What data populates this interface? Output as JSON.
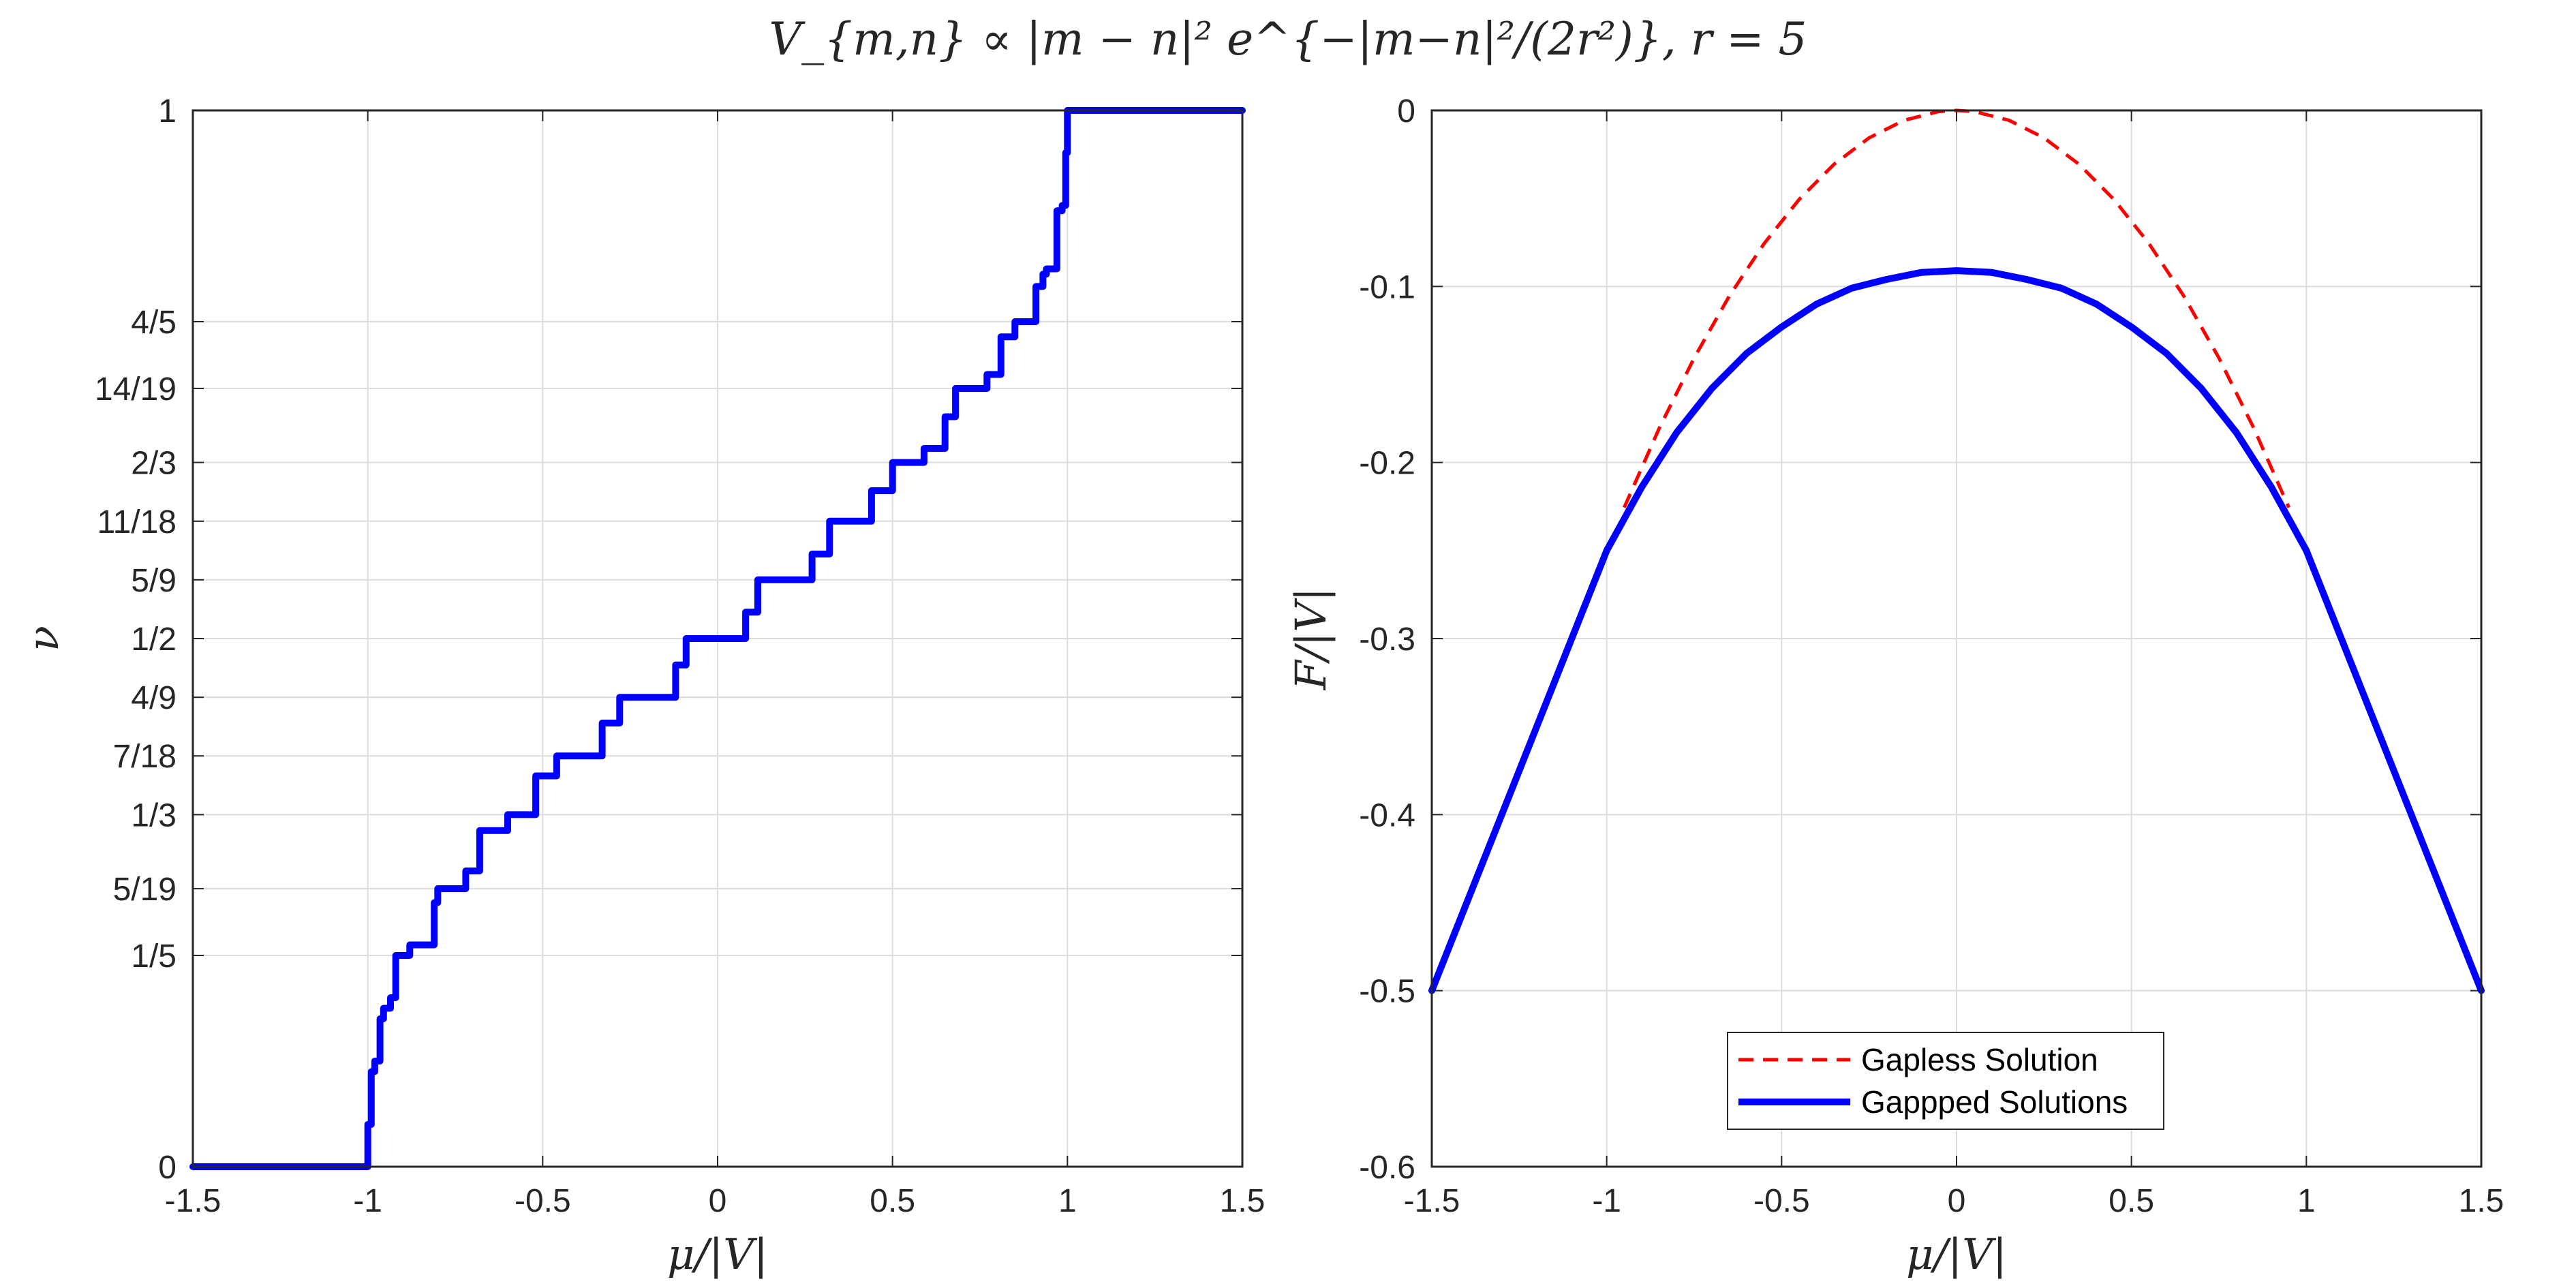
{
  "figure_title": "V_{m,n} ∝ |m − n|² e^{−|m−n|²/(2r²)},   r = 5",
  "chart_data": [
    {
      "type": "line",
      "xlabel": "μ/|V|",
      "ylabel": "ν",
      "xlim": [
        -1.5,
        1.5
      ],
      "ylim": [
        0,
        1
      ],
      "grid": true,
      "x_ticks": [
        -1.5,
        -1,
        -0.5,
        0,
        0.5,
        1,
        1.5
      ],
      "x_tick_labels": [
        "-1.5",
        "-1",
        "-0.5",
        "0",
        "0.5",
        "1",
        "1.5"
      ],
      "y_ticks": [
        0,
        0.2,
        0.2632,
        0.3333,
        0.3889,
        0.4444,
        0.5,
        0.5556,
        0.6111,
        0.6667,
        0.7368,
        0.8,
        1
      ],
      "y_tick_labels": [
        "0",
        "1/5",
        "5/19",
        "1/3",
        "7/18",
        "4/9",
        "1/2",
        "5/9",
        "11/18",
        "2/3",
        "14/19",
        "4/5",
        "1"
      ],
      "series": [
        {
          "color": "#0000ff",
          "style": "solid",
          "x": [
            -1.5,
            -1.0,
            -1.0,
            -0.99,
            -0.99,
            -0.98,
            -0.98,
            -0.965,
            -0.965,
            -0.955,
            -0.955,
            -0.935,
            -0.935,
            -0.92,
            -0.92,
            -0.88,
            -0.88,
            -0.81,
            -0.81,
            -0.8,
            -0.8,
            -0.72,
            -0.72,
            -0.68,
            -0.68,
            -0.6,
            -0.6,
            -0.52,
            -0.52,
            -0.46,
            -0.46,
            -0.33,
            -0.33,
            -0.28,
            -0.28,
            -0.12,
            -0.12,
            -0.09,
            -0.09,
            0.08,
            0.08,
            0.115,
            0.115,
            0.27,
            0.27,
            0.32,
            0.32,
            0.44,
            0.44,
            0.5,
            0.5,
            0.59,
            0.59,
            0.65,
            0.65,
            0.68,
            0.68,
            0.77,
            0.77,
            0.81,
            0.81,
            0.85,
            0.85,
            0.91,
            0.91,
            0.93,
            0.93,
            0.94,
            0.94,
            0.97,
            0.97,
            0.985,
            0.985,
            0.995,
            0.995,
            1.0,
            1.0,
            1.5
          ],
          "y": [
            0,
            0,
            0.04,
            0.04,
            0.09,
            0.09,
            0.1,
            0.1,
            0.14,
            0.14,
            0.15,
            0.15,
            0.16,
            0.16,
            0.2,
            0.2,
            0.21,
            0.21,
            0.25,
            0.25,
            0.2632,
            0.2632,
            0.28,
            0.28,
            0.3182,
            0.3182,
            0.3333,
            0.3333,
            0.37,
            0.37,
            0.3889,
            0.3889,
            0.42,
            0.42,
            0.4444,
            0.4444,
            0.475,
            0.475,
            0.5,
            0.5,
            0.525,
            0.525,
            0.5556,
            0.5556,
            0.58,
            0.58,
            0.6111,
            0.6111,
            0.64,
            0.64,
            0.6667,
            0.6667,
            0.68,
            0.68,
            0.71,
            0.71,
            0.7368,
            0.7368,
            0.75,
            0.75,
            0.7857,
            0.7857,
            0.8,
            0.8,
            0.8333,
            0.8333,
            0.845,
            0.845,
            0.85,
            0.85,
            0.905,
            0.905,
            0.91,
            0.91,
            0.96,
            0.96,
            1.0,
            1.0
          ]
        }
      ]
    },
    {
      "type": "line",
      "xlabel": "μ/|V|",
      "ylabel": "F/|V|",
      "xlim": [
        -1.5,
        1.5
      ],
      "ylim": [
        -0.6,
        0
      ],
      "grid": true,
      "x_ticks": [
        -1.5,
        -1,
        -0.5,
        0,
        0.5,
        1,
        1.5
      ],
      "x_tick_labels": [
        "-1.5",
        "-1",
        "-0.5",
        "0",
        "0.5",
        "1",
        "1.5"
      ],
      "y_ticks": [
        -0.6,
        -0.5,
        -0.4,
        -0.3,
        -0.2,
        -0.1,
        0
      ],
      "y_tick_labels": [
        "-0.6",
        "-0.5",
        "-0.4",
        "-0.3",
        "-0.2",
        "-0.1",
        "0"
      ],
      "legend": {
        "position": "bottom-center"
      },
      "series": [
        {
          "name": "Gapless Solution",
          "color": "#ff0000",
          "style": "dashed",
          "x": [
            -0.95,
            -0.85,
            -0.75,
            -0.65,
            -0.55,
            -0.45,
            -0.35,
            -0.25,
            -0.15,
            -0.05,
            0,
            0.05,
            0.15,
            0.25,
            0.35,
            0.45,
            0.55,
            0.65,
            0.75,
            0.85,
            0.95
          ],
          "y": [
            -0.2256,
            -0.1806,
            -0.1406,
            -0.1056,
            -0.0756,
            -0.0506,
            -0.0306,
            -0.0156,
            -0.0056,
            -0.0006,
            0,
            -0.0006,
            -0.0056,
            -0.0156,
            -0.0306,
            -0.0506,
            -0.0756,
            -0.1056,
            -0.1406,
            -0.1806,
            -0.2256
          ]
        },
        {
          "name": "Gappped Solutions",
          "color": "#0000ff",
          "style": "solid",
          "x": [
            -1.5,
            -1.0,
            -0.9,
            -0.8,
            -0.7,
            -0.6,
            -0.5,
            -0.4,
            -0.3,
            -0.2,
            -0.1,
            0,
            0.1,
            0.2,
            0.3,
            0.4,
            0.5,
            0.6,
            0.7,
            0.8,
            0.9,
            1.0,
            1.5
          ],
          "y": [
            -0.5,
            -0.25,
            -0.214,
            -0.183,
            -0.158,
            -0.138,
            -0.123,
            -0.11,
            -0.101,
            -0.096,
            -0.092,
            -0.091,
            -0.092,
            -0.096,
            -0.101,
            -0.11,
            -0.123,
            -0.138,
            -0.158,
            -0.183,
            -0.214,
            -0.25,
            -0.5
          ]
        }
      ]
    }
  ]
}
